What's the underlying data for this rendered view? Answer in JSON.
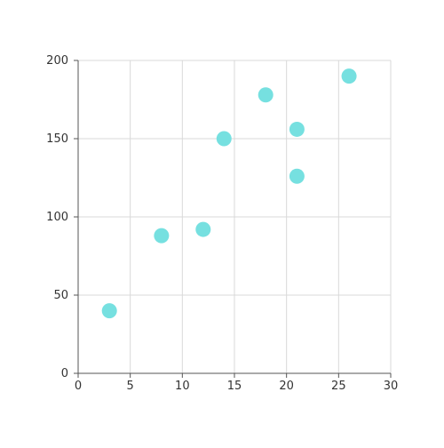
{
  "chart_data": {
    "type": "scatter",
    "title": "",
    "xlabel": "",
    "ylabel": "",
    "xlim": [
      0,
      30
    ],
    "ylim": [
      0,
      200
    ],
    "x_ticks": [
      0,
      5,
      10,
      15,
      20,
      25,
      30
    ],
    "y_ticks": [
      0,
      50,
      100,
      150,
      200
    ],
    "grid": true,
    "legend": "none",
    "point_color": "#76e0e0",
    "series": [
      {
        "points": [
          {
            "x": 3,
            "y": 40
          },
          {
            "x": 8,
            "y": 88
          },
          {
            "x": 12,
            "y": 92
          },
          {
            "x": 14,
            "y": 150
          },
          {
            "x": 18,
            "y": 178
          },
          {
            "x": 21,
            "y": 156
          },
          {
            "x": 21,
            "y": 126
          },
          {
            "x": 26,
            "y": 190
          }
        ]
      }
    ]
  }
}
